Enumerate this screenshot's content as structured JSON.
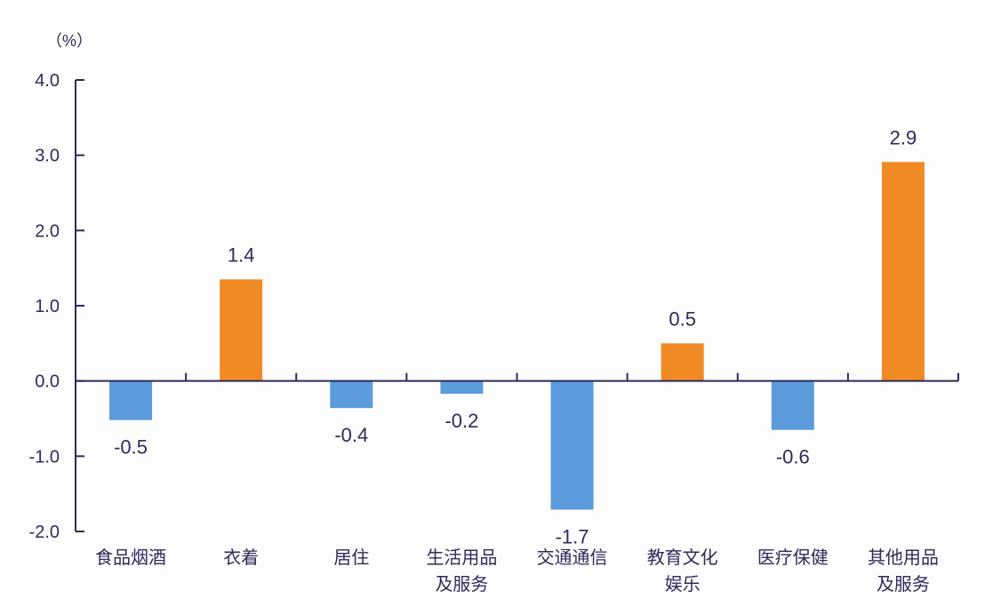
{
  "chart_data": {
    "type": "bar",
    "unit_label": "（%）",
    "ylim": [
      -2.0,
      4.0
    ],
    "yticks": [
      "4.0",
      "3.0",
      "2.0",
      "1.0",
      "0.0",
      "-1.0",
      "-2.0"
    ],
    "ytick_values": [
      4.0,
      3.0,
      2.0,
      1.0,
      0.0,
      -1.0,
      -2.0
    ],
    "categories": [
      [
        "食品烟酒"
      ],
      [
        "衣着"
      ],
      [
        "居住"
      ],
      [
        "生活用品",
        "及服务"
      ],
      [
        "交通通信"
      ],
      [
        "教育文化",
        "娱乐"
      ],
      [
        "医疗保健"
      ],
      [
        "其他用品",
        "及服务"
      ]
    ],
    "values": [
      -0.52,
      1.35,
      -0.36,
      -0.17,
      -1.71,
      0.5,
      -0.65,
      2.91
    ],
    "value_labels": [
      "-0.5",
      "1.4",
      "-0.4",
      "-0.2",
      "-1.7",
      "0.5",
      "-0.6",
      "2.9"
    ],
    "colors": {
      "positive": "#f08a24",
      "negative": "#5b9bdc",
      "axis": "#2e2b5a"
    },
    "grid": false
  }
}
